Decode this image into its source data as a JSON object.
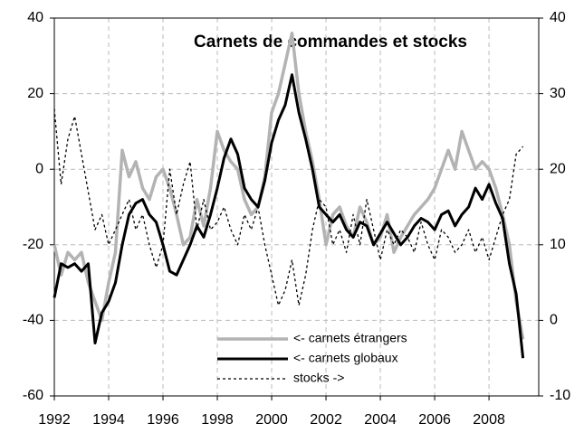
{
  "chart_data": {
    "type": "line",
    "title": "Carnets de commandes et stocks",
    "x": [
      1992,
      1992.25,
      1992.5,
      1992.75,
      1993,
      1993.25,
      1993.5,
      1993.75,
      1994,
      1994.25,
      1994.5,
      1994.75,
      1995,
      1995.25,
      1995.5,
      1995.75,
      1996,
      1996.25,
      1996.5,
      1996.75,
      1997,
      1997.25,
      1997.5,
      1997.75,
      1998,
      1998.25,
      1998.5,
      1998.75,
      1999,
      1999.25,
      1999.5,
      1999.75,
      2000,
      2000.25,
      2000.5,
      2000.75,
      2001,
      2001.25,
      2001.5,
      2001.75,
      2002,
      2002.25,
      2002.5,
      2002.75,
      2003,
      2003.25,
      2003.5,
      2003.75,
      2004,
      2004.25,
      2004.5,
      2004.75,
      2005,
      2005.25,
      2005.5,
      2005.75,
      2006,
      2006.25,
      2006.5,
      2006.75,
      2007,
      2007.25,
      2007.5,
      2007.75,
      2008,
      2008.25,
      2008.5,
      2008.75,
      2009,
      2009.25
    ],
    "series": [
      {
        "name": "<- carnets étrangers",
        "color": "#b3b3b3",
        "axis": "y",
        "values": [
          -20,
          -28,
          -22,
          -24,
          -22,
          -30,
          -35,
          -40,
          -30,
          -22,
          5,
          -2,
          2,
          -5,
          -8,
          -2,
          0,
          -5,
          -12,
          -20,
          -18,
          -8,
          -15,
          -5,
          10,
          5,
          2,
          0,
          -8,
          -12,
          -10,
          -2,
          15,
          20,
          28,
          36,
          20,
          10,
          2,
          -8,
          -20,
          -12,
          -10,
          -15,
          -18,
          -10,
          -14,
          -20,
          -18,
          -12,
          -22,
          -18,
          -15,
          -12,
          -10,
          -8,
          -5,
          0,
          5,
          0,
          10,
          5,
          0,
          2,
          0,
          -5,
          -12,
          -20,
          -35,
          -45
        ]
      },
      {
        "name": "<- carnets globaux",
        "color": "#000000",
        "axis": "y",
        "values": [
          -34,
          -25,
          -26,
          -25,
          -27,
          -25,
          -46,
          -38,
          -35,
          -30,
          -20,
          -12,
          -9,
          -8,
          -12,
          -14,
          -20,
          -27,
          -28,
          -24,
          -20,
          -15,
          -18,
          -12,
          -5,
          3,
          8,
          4,
          -5,
          -8,
          -10,
          -3,
          7,
          13,
          17,
          25,
          15,
          8,
          0,
          -10,
          -12,
          -14,
          -12,
          -16,
          -18,
          -14,
          -15,
          -20,
          -17,
          -14,
          -17,
          -20,
          -18,
          -15,
          -13,
          -14,
          -16,
          -12,
          -11,
          -15,
          -12,
          -10,
          -5,
          -8,
          -4,
          -9,
          -13,
          -25,
          -33,
          -50
        ]
      },
      {
        "name": "stocks ->",
        "color": "#000000",
        "axis": "y2",
        "dashed": true,
        "values": [
          28,
          18,
          24,
          27,
          22,
          17,
          12,
          14,
          10,
          12,
          14,
          16,
          12,
          14,
          10,
          7,
          10,
          20,
          14,
          18,
          21,
          12,
          16,
          12,
          13,
          15,
          12,
          10,
          14,
          12,
          15,
          10,
          6,
          2,
          4,
          8,
          2,
          6,
          12,
          16,
          15,
          10,
          12,
          9,
          14,
          10,
          16,
          12,
          8,
          12,
          10,
          12,
          11,
          9,
          13,
          10,
          8,
          12,
          11,
          9,
          10,
          12,
          9,
          11,
          8,
          11,
          14,
          16,
          22,
          23
        ]
      }
    ],
    "xlim": [
      1992,
      2009.83
    ],
    "xticks": [
      1992,
      1994,
      1996,
      1998,
      2000,
      2002,
      2004,
      2006,
      2008
    ],
    "ylim": [
      -60,
      40
    ],
    "yticks": [
      -60,
      -40,
      -20,
      0,
      20,
      40
    ],
    "y2lim": [
      -10,
      40
    ],
    "y2ticks": [
      -10,
      0,
      10,
      20,
      30,
      40
    ],
    "grid": true
  }
}
